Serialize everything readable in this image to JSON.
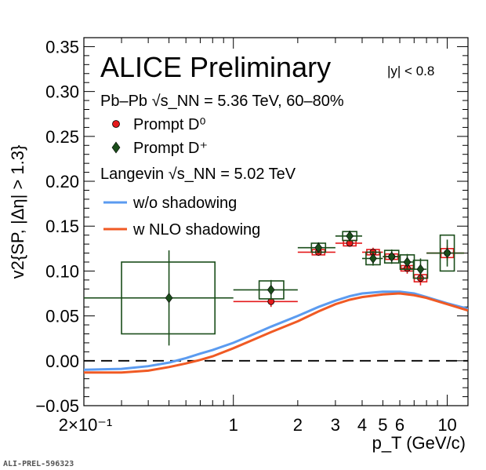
{
  "chart_data": {
    "type": "scatter",
    "title": "ALICE Preliminary",
    "rapidity_label": "|y| < 0.8",
    "system_label": "Pb–Pb √s_NN = 5.36 TeV, 60–80%",
    "model_label": "Langevin √s_NN = 5.02 TeV",
    "xlabel": "p_T (GeV/c)",
    "ylabel": "v2{SP, |Δη| > 1.3}",
    "xscale": "log",
    "xlim": [
      0.2,
      12.5
    ],
    "ylim": [
      -0.05,
      0.36
    ],
    "y_ticks": [
      "−0.05",
      "0.00",
      "0.05",
      "0.10",
      "0.15",
      "0.20",
      "0.25",
      "0.30",
      "0.35"
    ],
    "x_ticks": [
      "2×10⁻¹",
      "1",
      "2",
      "3",
      "4",
      "5",
      "6",
      "10"
    ],
    "legend_position": "top-left",
    "series": [
      {
        "name": "Prompt D⁰",
        "marker": "circle",
        "color": "#e41a1c",
        "points": [
          {
            "x": 1.5,
            "y": 0.066,
            "xlo": 1.0,
            "xhi": 2.0,
            "err": 0.006,
            "syst": 0.004
          },
          {
            "x": 2.5,
            "y": 0.121,
            "xlo": 2.0,
            "xhi": 3.0,
            "err": 0.004,
            "syst": 0.003
          },
          {
            "x": 3.5,
            "y": 0.131,
            "xlo": 3.0,
            "xhi": 4.0,
            "err": 0.004,
            "syst": 0.003
          },
          {
            "x": 4.5,
            "y": 0.121,
            "xlo": 4.0,
            "xhi": 5.0,
            "err": 0.005,
            "syst": 0.003
          },
          {
            "x": 5.5,
            "y": 0.116,
            "xlo": 5.0,
            "xhi": 6.0,
            "err": 0.005,
            "syst": 0.003
          },
          {
            "x": 6.5,
            "y": 0.103,
            "xlo": 6.0,
            "xhi": 7.0,
            "err": 0.006,
            "syst": 0.003
          },
          {
            "x": 7.5,
            "y": 0.092,
            "xlo": 7.0,
            "xhi": 8.0,
            "err": 0.008,
            "syst": 0.004
          },
          {
            "x": 10.0,
            "y": 0.12,
            "xlo": 8.0,
            "xhi": 12.0,
            "err": 0.008,
            "syst": 0.005
          }
        ]
      },
      {
        "name": "Prompt D⁺",
        "marker": "diamond",
        "color": "#1a4d1a",
        "points": [
          {
            "x": 0.5,
            "y": 0.07,
            "xlo": 0.2,
            "xhi": 1.0,
            "err": 0.053,
            "syst": 0.04
          },
          {
            "x": 1.5,
            "y": 0.079,
            "xlo": 1.0,
            "xhi": 2.0,
            "err": 0.011,
            "syst": 0.01
          },
          {
            "x": 2.5,
            "y": 0.126,
            "xlo": 2.0,
            "xhi": 3.0,
            "err": 0.006,
            "syst": 0.005
          },
          {
            "x": 3.5,
            "y": 0.139,
            "xlo": 3.0,
            "xhi": 4.0,
            "err": 0.006,
            "syst": 0.005
          },
          {
            "x": 4.5,
            "y": 0.114,
            "xlo": 4.0,
            "xhi": 5.0,
            "err": 0.008,
            "syst": 0.007
          },
          {
            "x": 5.5,
            "y": 0.116,
            "xlo": 5.0,
            "xhi": 6.0,
            "err": 0.008,
            "syst": 0.007
          },
          {
            "x": 6.5,
            "y": 0.11,
            "xlo": 6.0,
            "xhi": 7.0,
            "err": 0.009,
            "syst": 0.008
          },
          {
            "x": 7.5,
            "y": 0.102,
            "xlo": 7.0,
            "xhi": 8.0,
            "err": 0.012,
            "syst": 0.01
          },
          {
            "x": 10.0,
            "y": 0.12,
            "xlo": 8.0,
            "xhi": 12.0,
            "err": 0.015,
            "syst": 0.02
          }
        ]
      }
    ],
    "models": [
      {
        "name": "w/o shadowing",
        "color": "#5b9bf0",
        "x": [
          0.2,
          0.3,
          0.4,
          0.5,
          0.6,
          0.7,
          0.8,
          1.0,
          1.2,
          1.5,
          2.0,
          2.5,
          3.0,
          3.5,
          4.0,
          5.0,
          6.0,
          7.0,
          8.0,
          10.0,
          12.5
        ],
        "y": [
          -0.01,
          -0.009,
          -0.006,
          -0.002,
          0.003,
          0.008,
          0.012,
          0.02,
          0.028,
          0.038,
          0.05,
          0.06,
          0.067,
          0.072,
          0.075,
          0.077,
          0.077,
          0.075,
          0.071,
          0.064,
          0.058
        ]
      },
      {
        "name": "w NLO shadowing",
        "color": "#f05a24",
        "x": [
          0.2,
          0.3,
          0.4,
          0.5,
          0.6,
          0.7,
          0.8,
          1.0,
          1.2,
          1.5,
          2.0,
          2.5,
          3.0,
          3.5,
          4.0,
          5.0,
          6.0,
          7.0,
          8.0,
          10.0,
          12.5
        ],
        "y": [
          -0.013,
          -0.013,
          -0.011,
          -0.007,
          -0.003,
          0.001,
          0.005,
          0.014,
          0.022,
          0.032,
          0.044,
          0.055,
          0.063,
          0.068,
          0.071,
          0.074,
          0.075,
          0.073,
          0.07,
          0.063,
          0.056
        ]
      }
    ]
  },
  "footer": "ALI-PREL-596323"
}
